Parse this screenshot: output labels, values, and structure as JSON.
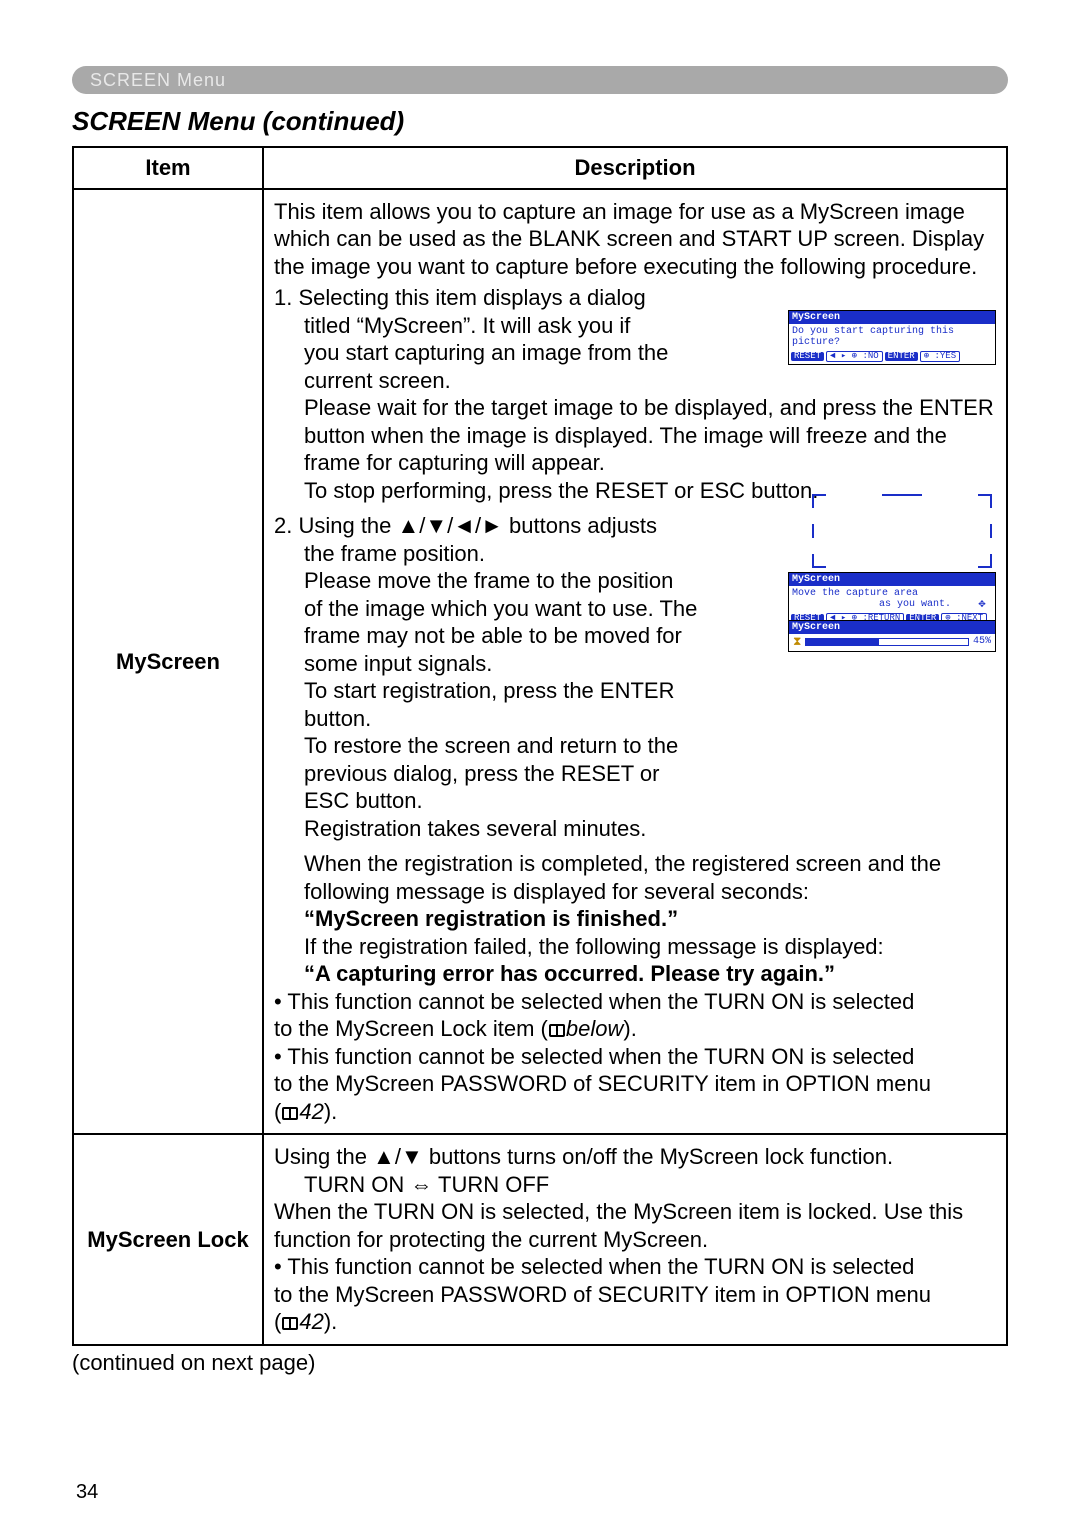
{
  "header": {
    "breadcrumb": "SCREEN Menu"
  },
  "section_title": "SCREEN Menu (continued)",
  "table": {
    "headers": {
      "item": "Item",
      "description": "Description"
    },
    "rows": [
      {
        "item": "MyScreen",
        "desc": {
          "intro": "This item allows you to capture an image for use as a MyScreen image which can be used as the BLANK screen and START UP screen. Display the image you want to capture before executing the following procedure.",
          "step1_lead": "1. Selecting this item displays a dialog",
          "step1_body_l1": "titled “MyScreen”. It will ask you if",
          "step1_body_l2": "you start capturing an image from the",
          "step1_body_l3": "current screen.",
          "step1_para": "Please wait for the target image to be displayed, and press the ENTER button when the image is displayed. The image will freeze and the frame for capturing will appear.",
          "step1_stop": "To stop performing, press the RESET or ESC button.",
          "step2_lead": "2. Using the ▲/▼/◄/► buttons adjusts",
          "step2_l1": "the frame position.",
          "step2_l2": "Please move the frame to the position",
          "step2_l3": "of the image which you want to use. The",
          "step2_l4": "frame may not be able to be moved for",
          "step2_l5": "some input signals.",
          "step2_l6": "To start registration, press the ENTER",
          "step2_l7": "button.",
          "step2_l8": "To restore the screen and return to the",
          "step2_l9": "previous dialog, press the RESET or",
          "step2_l10": "ESC button.",
          "step2_l11": "Registration takes several minutes.",
          "reg_done_intro": "When the registration is completed, the registered screen and the following message is displayed for several seconds:",
          "reg_done_msg": "“MyScreen registration is finished.”",
          "reg_fail_intro": "If the registration failed, the following message is displayed:",
          "reg_fail_msg": "“A capturing error has occurred. Please try again.”",
          "note1_a": "• This function cannot be selected when the TURN ON is selected",
          "note1_b": "to the MyScreen Lock item (",
          "note1_c": "below",
          "note1_d": ").",
          "note2_a": "• This function cannot be selected when the TURN ON is selected",
          "note2_b": "to the MyScreen PASSWORD of SECURITY item in OPTION menu",
          "note2_c": "(",
          "note2_ref": "42",
          "note2_d": ")."
        },
        "dialogs": {
          "d1": {
            "title": "MyScreen",
            "body": "Do you start capturing this picture?",
            "reset": "RESET",
            "nav_no": "◄ ▸ ⊕ :NO",
            "enter": "ENTER",
            "yes": "⊕ :YES"
          },
          "d2": {
            "title": "MyScreen",
            "body_l1": "Move the capture area",
            "body_l2": "as you want.",
            "reset": "RESET",
            "nav_ret": "◄ ▸ ⊕ :RETURN",
            "enter": "ENTER",
            "next": "⊕ :NEXT"
          },
          "d3": {
            "title": "MyScreen",
            "percent": "45%",
            "progress_pct": 45
          }
        }
      },
      {
        "item": "MyScreen Lock",
        "desc": {
          "line1": "Using the ▲/▼ buttons turns on/off the MyScreen lock function.",
          "line2": "TURN ON ⇔ TURN OFF",
          "line3": "When the TURN ON is selected, the MyScreen item is locked. Use this function for protecting the current MyScreen.",
          "note_a": "• This function cannot be selected when the TURN ON is selected",
          "note_b": "to the MyScreen PASSWORD of SECURITY item in OPTION menu",
          "note_c": "(",
          "note_ref": "42",
          "note_d": ")."
        }
      }
    ]
  },
  "continued": "(continued on next page)",
  "page_number": "34",
  "colors": {
    "headerbar_bg": "#a9a9a9",
    "headerbar_fg": "#e8e8e8",
    "dialog_blue": "#1a2ec8",
    "hourglass": "#c08a00"
  }
}
